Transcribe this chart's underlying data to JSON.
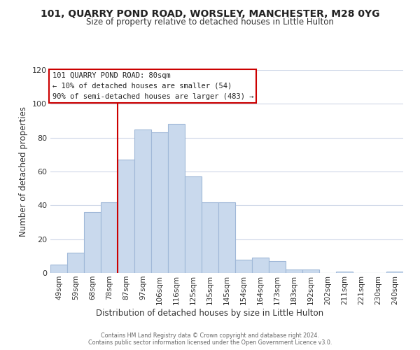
{
  "title": "101, QUARRY POND ROAD, WORSLEY, MANCHESTER, M28 0YG",
  "subtitle": "Size of property relative to detached houses in Little Hulton",
  "xlabel": "Distribution of detached houses by size in Little Hulton",
  "ylabel": "Number of detached properties",
  "bar_labels": [
    "49sqm",
    "59sqm",
    "68sqm",
    "78sqm",
    "87sqm",
    "97sqm",
    "106sqm",
    "116sqm",
    "125sqm",
    "135sqm",
    "145sqm",
    "154sqm",
    "164sqm",
    "173sqm",
    "183sqm",
    "192sqm",
    "202sqm",
    "211sqm",
    "221sqm",
    "230sqm",
    "240sqm"
  ],
  "bar_values": [
    5,
    12,
    36,
    42,
    67,
    85,
    83,
    88,
    57,
    42,
    42,
    8,
    9,
    7,
    2,
    2,
    0,
    1,
    0,
    0,
    1
  ],
  "bar_color": "#c9d9ed",
  "bar_edge_color": "#a0b8d8",
  "vline_index": 3,
  "vline_color": "#cc0000",
  "ylim": [
    0,
    120
  ],
  "yticks": [
    0,
    20,
    40,
    60,
    80,
    100,
    120
  ],
  "annotation_title": "101 QUARRY POND ROAD: 80sqm",
  "annotation_line1": "← 10% of detached houses are smaller (54)",
  "annotation_line2": "90% of semi-detached houses are larger (483) →",
  "annotation_box_color": "#ffffff",
  "annotation_box_edge_color": "#cc0000",
  "footer1": "Contains HM Land Registry data © Crown copyright and database right 2024.",
  "footer2": "Contains public sector information licensed under the Open Government Licence v3.0.",
  "background_color": "#ffffff",
  "grid_color": "#d0d8e8"
}
